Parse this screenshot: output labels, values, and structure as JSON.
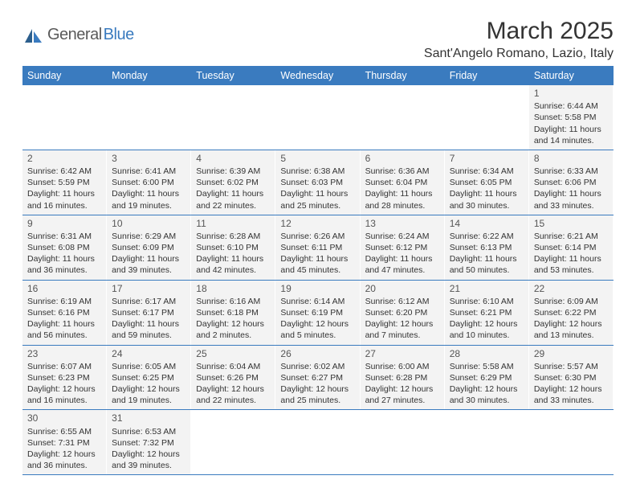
{
  "logo": {
    "text1": "General",
    "text2": "Blue"
  },
  "title": "March 2025",
  "location": "Sant'Angelo Romano, Lazio, Italy",
  "colors": {
    "brand": "#3a7bbf",
    "cell_bg": "#f3f3f3",
    "text": "#333333"
  },
  "weekdays": [
    "Sunday",
    "Monday",
    "Tuesday",
    "Wednesday",
    "Thursday",
    "Friday",
    "Saturday"
  ],
  "first_weekday_index": 6,
  "days": [
    {
      "n": 1,
      "sunrise": "6:44 AM",
      "sunset": "5:58 PM",
      "daylight": "11 hours and 14 minutes."
    },
    {
      "n": 2,
      "sunrise": "6:42 AM",
      "sunset": "5:59 PM",
      "daylight": "11 hours and 16 minutes."
    },
    {
      "n": 3,
      "sunrise": "6:41 AM",
      "sunset": "6:00 PM",
      "daylight": "11 hours and 19 minutes."
    },
    {
      "n": 4,
      "sunrise": "6:39 AM",
      "sunset": "6:02 PM",
      "daylight": "11 hours and 22 minutes."
    },
    {
      "n": 5,
      "sunrise": "6:38 AM",
      "sunset": "6:03 PM",
      "daylight": "11 hours and 25 minutes."
    },
    {
      "n": 6,
      "sunrise": "6:36 AM",
      "sunset": "6:04 PM",
      "daylight": "11 hours and 28 minutes."
    },
    {
      "n": 7,
      "sunrise": "6:34 AM",
      "sunset": "6:05 PM",
      "daylight": "11 hours and 30 minutes."
    },
    {
      "n": 8,
      "sunrise": "6:33 AM",
      "sunset": "6:06 PM",
      "daylight": "11 hours and 33 minutes."
    },
    {
      "n": 9,
      "sunrise": "6:31 AM",
      "sunset": "6:08 PM",
      "daylight": "11 hours and 36 minutes."
    },
    {
      "n": 10,
      "sunrise": "6:29 AM",
      "sunset": "6:09 PM",
      "daylight": "11 hours and 39 minutes."
    },
    {
      "n": 11,
      "sunrise": "6:28 AM",
      "sunset": "6:10 PM",
      "daylight": "11 hours and 42 minutes."
    },
    {
      "n": 12,
      "sunrise": "6:26 AM",
      "sunset": "6:11 PM",
      "daylight": "11 hours and 45 minutes."
    },
    {
      "n": 13,
      "sunrise": "6:24 AM",
      "sunset": "6:12 PM",
      "daylight": "11 hours and 47 minutes."
    },
    {
      "n": 14,
      "sunrise": "6:22 AM",
      "sunset": "6:13 PM",
      "daylight": "11 hours and 50 minutes."
    },
    {
      "n": 15,
      "sunrise": "6:21 AM",
      "sunset": "6:14 PM",
      "daylight": "11 hours and 53 minutes."
    },
    {
      "n": 16,
      "sunrise": "6:19 AM",
      "sunset": "6:16 PM",
      "daylight": "11 hours and 56 minutes."
    },
    {
      "n": 17,
      "sunrise": "6:17 AM",
      "sunset": "6:17 PM",
      "daylight": "11 hours and 59 minutes."
    },
    {
      "n": 18,
      "sunrise": "6:16 AM",
      "sunset": "6:18 PM",
      "daylight": "12 hours and 2 minutes."
    },
    {
      "n": 19,
      "sunrise": "6:14 AM",
      "sunset": "6:19 PM",
      "daylight": "12 hours and 5 minutes."
    },
    {
      "n": 20,
      "sunrise": "6:12 AM",
      "sunset": "6:20 PM",
      "daylight": "12 hours and 7 minutes."
    },
    {
      "n": 21,
      "sunrise": "6:10 AM",
      "sunset": "6:21 PM",
      "daylight": "12 hours and 10 minutes."
    },
    {
      "n": 22,
      "sunrise": "6:09 AM",
      "sunset": "6:22 PM",
      "daylight": "12 hours and 13 minutes."
    },
    {
      "n": 23,
      "sunrise": "6:07 AM",
      "sunset": "6:23 PM",
      "daylight": "12 hours and 16 minutes."
    },
    {
      "n": 24,
      "sunrise": "6:05 AM",
      "sunset": "6:25 PM",
      "daylight": "12 hours and 19 minutes."
    },
    {
      "n": 25,
      "sunrise": "6:04 AM",
      "sunset": "6:26 PM",
      "daylight": "12 hours and 22 minutes."
    },
    {
      "n": 26,
      "sunrise": "6:02 AM",
      "sunset": "6:27 PM",
      "daylight": "12 hours and 25 minutes."
    },
    {
      "n": 27,
      "sunrise": "6:00 AM",
      "sunset": "6:28 PM",
      "daylight": "12 hours and 27 minutes."
    },
    {
      "n": 28,
      "sunrise": "5:58 AM",
      "sunset": "6:29 PM",
      "daylight": "12 hours and 30 minutes."
    },
    {
      "n": 29,
      "sunrise": "5:57 AM",
      "sunset": "6:30 PM",
      "daylight": "12 hours and 33 minutes."
    },
    {
      "n": 30,
      "sunrise": "6:55 AM",
      "sunset": "7:31 PM",
      "daylight": "12 hours and 36 minutes."
    },
    {
      "n": 31,
      "sunrise": "6:53 AM",
      "sunset": "7:32 PM",
      "daylight": "12 hours and 39 minutes."
    }
  ],
  "labels": {
    "sunrise": "Sunrise:",
    "sunset": "Sunset:",
    "daylight": "Daylight:"
  }
}
